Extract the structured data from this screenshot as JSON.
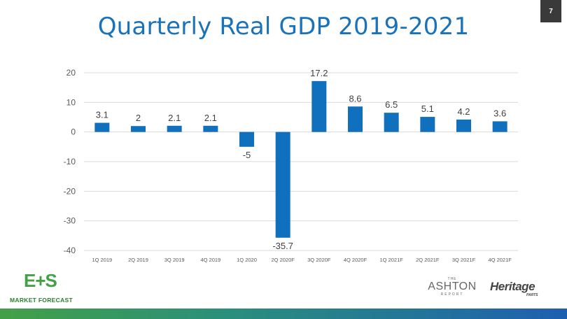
{
  "slide": {
    "title": "Quarterly Real GDP 2019-2021",
    "page_number": "7"
  },
  "branding": {
    "es_logo_text": "E+S",
    "es_logo_subtitle": "MARKET FORECAST",
    "ashton_the": "THE",
    "ashton_name": "ASHTON",
    "ashton_report": "REPORT",
    "heritage_name": "Heritage",
    "heritage_sub": "PARTS"
  },
  "colors": {
    "title": "#1a72b8",
    "bar": "#1170be",
    "grid": "#d9d9d9",
    "brand_green": "#43a047"
  },
  "chart_data": {
    "type": "bar",
    "categories": [
      "1Q 2019",
      "2Q 2019",
      "3Q 2019",
      "4Q 2019",
      "1Q 2020",
      "2Q 2020F",
      "3Q 2020F",
      "4Q 2020F",
      "1Q 2021F",
      "2Q 2021F",
      "3Q 2021F",
      "4Q 2021F"
    ],
    "values": [
      3.1,
      2,
      2.1,
      2.1,
      -5,
      -35.7,
      17.2,
      8.6,
      6.5,
      5.1,
      4.2,
      3.6
    ],
    "data_labels": [
      "3.1",
      "2",
      "2.1",
      "2.1",
      "-5",
      "-35.7",
      "17.2",
      "8.6",
      "6.5",
      "5.1",
      "4.2",
      "3.6"
    ],
    "ylim": [
      -40,
      20
    ],
    "yticks": [
      "20",
      "10",
      "0",
      "-10",
      "-20",
      "-30",
      "-40"
    ],
    "grid": true,
    "legend": "none"
  }
}
